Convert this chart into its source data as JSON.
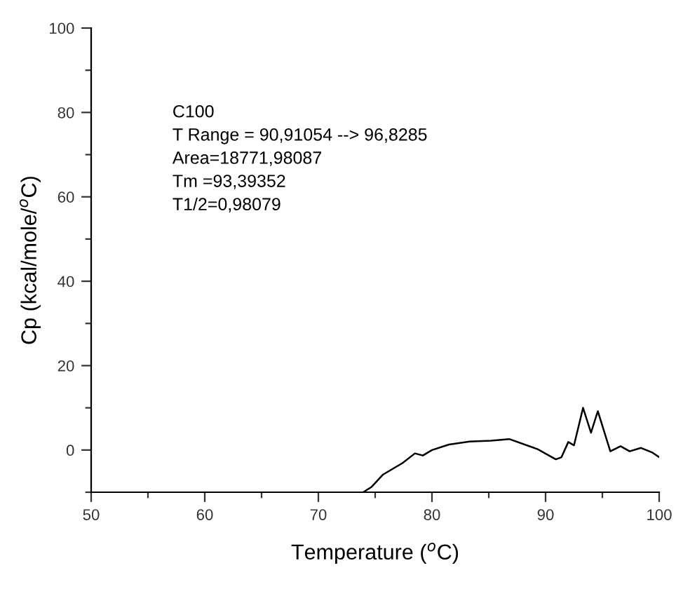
{
  "chart_data": {
    "type": "line",
    "xlabel": "Temperature ($^{o}$C)",
    "ylabel": "Cp (kcal/mole/$^{o}$C)",
    "annotations": [
      "C100",
      "T Range = 90,91054 --> 96,8285",
      "Area=18771,98087",
      "Tm =93,39352",
      "T1/2=0,98079"
    ],
    "series": [
      {
        "color": "#000000",
        "x": [
          73.95,
          74.7,
          75.7,
          77.4,
          78.5,
          79.2,
          80.0,
          81.5,
          83.3,
          85.2,
          86.8,
          89.3,
          90.9,
          91.4,
          92.0,
          92.5,
          93.3,
          94.0,
          94.6,
          95.7,
          96.6,
          97.4,
          98.4,
          99.4,
          100
        ],
        "values": [
          -10,
          -8.7,
          -5.8,
          -3.1,
          -0.8,
          -1.3,
          0,
          1.3,
          2.0,
          2.2,
          2.6,
          0.2,
          -2.2,
          -1.7,
          1.9,
          1.1,
          10.0,
          4.1,
          9.2,
          -0.3,
          0.9,
          -0.3,
          0.5,
          -0.6,
          -1.7
        ]
      }
    ],
    "xlim": [
      50,
      100
    ],
    "ylim": [
      -10,
      100
    ],
    "xticks": [
      50,
      60,
      70,
      80,
      90,
      100
    ],
    "yticks": [
      0,
      20,
      40,
      60,
      80,
      100
    ],
    "grid": false,
    "legend": false
  }
}
